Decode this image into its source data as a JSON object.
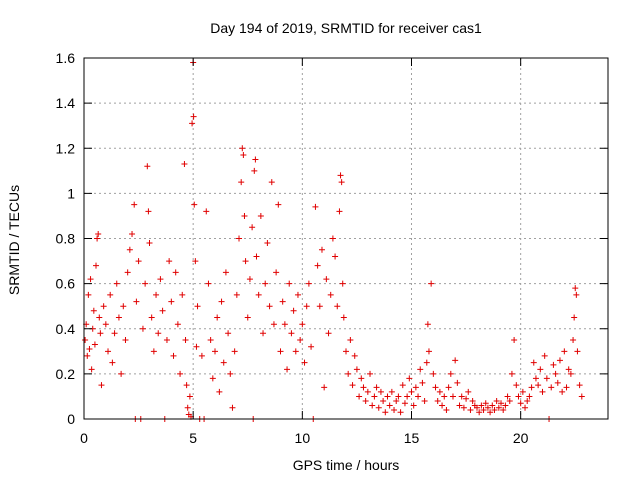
{
  "chart_data": {
    "type": "scatter",
    "title": "Day 194 of 2019, SRMTID for receiver cas1",
    "xlabel": "GPS time / hours",
    "ylabel": "SRMTID / TECUs",
    "xlim": [
      0,
      24
    ],
    "ylim": [
      0,
      1.6
    ],
    "xticks": [
      0,
      5,
      10,
      15,
      20
    ],
    "xtick_labels": [
      "0",
      "5",
      "10",
      "15",
      "20"
    ],
    "yticks": [
      0,
      0.2,
      0.4,
      0.6,
      0.8,
      1.0,
      1.2,
      1.4,
      1.6
    ],
    "ytick_labels": [
      "0",
      "0.2",
      "0.4",
      "0.6",
      "0.8",
      "1",
      "1.2",
      "1.4",
      "1.6"
    ],
    "grid": true,
    "marker": "plus",
    "color": "#e00000",
    "series": [
      {
        "name": "SRMTID",
        "points": [
          [
            0.05,
            0.35
          ],
          [
            0.1,
            0.42
          ],
          [
            0.15,
            0.28
          ],
          [
            0.2,
            0.55
          ],
          [
            0.25,
            0.31
          ],
          [
            0.3,
            0.62
          ],
          [
            0.35,
            0.22
          ],
          [
            0.4,
            0.4
          ],
          [
            0.45,
            0.48
          ],
          [
            0.5,
            0.33
          ],
          [
            0.55,
            0.68
          ],
          [
            0.6,
            0.8
          ],
          [
            0.65,
            0.82
          ],
          [
            0.7,
            0.45
          ],
          [
            0.75,
            0.38
          ],
          [
            0.8,
            0.15
          ],
          [
            0.9,
            0.5
          ],
          [
            1.0,
            0.42
          ],
          [
            1.1,
            0.3
          ],
          [
            1.2,
            0.55
          ],
          [
            1.3,
            0.25
          ],
          [
            1.4,
            0.38
          ],
          [
            1.5,
            0.6
          ],
          [
            1.6,
            0.45
          ],
          [
            1.7,
            0.2
          ],
          [
            1.8,
            0.5
          ],
          [
            1.9,
            0.35
          ],
          [
            2.0,
            0.65
          ],
          [
            2.1,
            0.75
          ],
          [
            2.2,
            0.82
          ],
          [
            2.3,
            0.95
          ],
          [
            2.35,
            0.0
          ],
          [
            2.4,
            0.52
          ],
          [
            2.5,
            0.7
          ],
          [
            2.6,
            0.0
          ],
          [
            2.7,
            0.4
          ],
          [
            2.8,
            0.6
          ],
          [
            2.9,
            1.12
          ],
          [
            2.95,
            0.92
          ],
          [
            3.0,
            0.78
          ],
          [
            3.1,
            0.45
          ],
          [
            3.2,
            0.3
          ],
          [
            3.3,
            0.55
          ],
          [
            3.4,
            0.38
          ],
          [
            3.5,
            0.62
          ],
          [
            3.6,
            0.48
          ],
          [
            3.7,
            0.0
          ],
          [
            3.8,
            0.35
          ],
          [
            3.9,
            0.7
          ],
          [
            4.0,
            0.52
          ],
          [
            4.1,
            0.28
          ],
          [
            4.2,
            0.65
          ],
          [
            4.3,
            0.42
          ],
          [
            4.4,
            0.2
          ],
          [
            4.5,
            0.55
          ],
          [
            4.6,
            1.13
          ],
          [
            4.65,
            0.35
          ],
          [
            4.7,
            0.15
          ],
          [
            4.75,
            0.05
          ],
          [
            4.8,
            0.02
          ],
          [
            4.85,
            0.1
          ],
          [
            4.9,
            0.01
          ],
          [
            4.95,
            1.31
          ],
          [
            5.0,
            1.58
          ],
          [
            5.02,
            1.34
          ],
          [
            5.05,
            0.95
          ],
          [
            5.1,
            0.7
          ],
          [
            5.15,
            0.32
          ],
          [
            5.2,
            0.5
          ],
          [
            5.3,
            0.0
          ],
          [
            5.4,
            0.28
          ],
          [
            5.5,
            0.0
          ],
          [
            5.6,
            0.92
          ],
          [
            5.7,
            0.6
          ],
          [
            5.8,
            0.35
          ],
          [
            5.9,
            0.18
          ],
          [
            6.0,
            0.3
          ],
          [
            6.1,
            0.45
          ],
          [
            6.2,
            0.12
          ],
          [
            6.3,
            0.52
          ],
          [
            6.4,
            0.25
          ],
          [
            6.5,
            0.65
          ],
          [
            6.6,
            0.38
          ],
          [
            6.7,
            0.2
          ],
          [
            6.8,
            0.05
          ],
          [
            6.9,
            0.3
          ],
          [
            7.0,
            0.55
          ],
          [
            7.1,
            0.8
          ],
          [
            7.2,
            1.05
          ],
          [
            7.25,
            1.2
          ],
          [
            7.3,
            1.17
          ],
          [
            7.35,
            0.9
          ],
          [
            7.4,
            0.7
          ],
          [
            7.5,
            0.45
          ],
          [
            7.6,
            0.62
          ],
          [
            7.7,
            0.85
          ],
          [
            7.75,
            0.0
          ],
          [
            7.8,
            1.1
          ],
          [
            7.85,
            1.15
          ],
          [
            7.9,
            0.72
          ],
          [
            8.0,
            0.55
          ],
          [
            8.1,
            0.9
          ],
          [
            8.2,
            0.38
          ],
          [
            8.3,
            0.6
          ],
          [
            8.4,
            0.78
          ],
          [
            8.5,
            0.5
          ],
          [
            8.6,
            1.05
          ],
          [
            8.7,
            0.42
          ],
          [
            8.8,
            0.65
          ],
          [
            8.9,
            0.95
          ],
          [
            9.0,
            0.3
          ],
          [
            9.1,
            0.52
          ],
          [
            9.2,
            0.42
          ],
          [
            9.3,
            0.22
          ],
          [
            9.4,
            0.6
          ],
          [
            9.5,
            0.38
          ],
          [
            9.6,
            0.48
          ],
          [
            9.7,
            0.3
          ],
          [
            9.8,
            0.55
          ],
          [
            9.9,
            0.35
          ],
          [
            10.0,
            0.42
          ],
          [
            10.1,
            0.25
          ],
          [
            10.2,
            0.5
          ],
          [
            10.3,
            0.6
          ],
          [
            10.4,
            0.32
          ],
          [
            10.5,
            0.0
          ],
          [
            10.6,
            0.94
          ],
          [
            10.7,
            0.68
          ],
          [
            10.8,
            0.5
          ],
          [
            10.9,
            0.75
          ],
          [
            11.0,
            0.14
          ],
          [
            11.1,
            0.62
          ],
          [
            11.2,
            0.38
          ],
          [
            11.3,
            0.55
          ],
          [
            11.4,
            0.8
          ],
          [
            11.5,
            0.72
          ],
          [
            11.6,
            0.5
          ],
          [
            11.7,
            0.92
          ],
          [
            11.75,
            1.08
          ],
          [
            11.8,
            1.05
          ],
          [
            11.85,
            0.6
          ],
          [
            11.9,
            0.45
          ],
          [
            12.0,
            0.3
          ],
          [
            12.1,
            0.2
          ],
          [
            12.2,
            0.35
          ],
          [
            12.3,
            0.15
          ],
          [
            12.4,
            0.28
          ],
          [
            12.5,
            0.22
          ],
          [
            12.6,
            0.1
          ],
          [
            12.7,
            0.18
          ],
          [
            12.8,
            0.14
          ],
          [
            12.9,
            0.08
          ],
          [
            13.0,
            0.12
          ],
          [
            13.1,
            0.2
          ],
          [
            13.2,
            0.06
          ],
          [
            13.3,
            0.1
          ],
          [
            13.4,
            0.14
          ],
          [
            13.5,
            0.05
          ],
          [
            13.6,
            0.12
          ],
          [
            13.7,
            0.08
          ],
          [
            13.8,
            0.03
          ],
          [
            13.9,
            0.1
          ],
          [
            14.0,
            0.06
          ],
          [
            14.1,
            0.12
          ],
          [
            14.2,
            0.04
          ],
          [
            14.3,
            0.08
          ],
          [
            14.4,
            0.1
          ],
          [
            14.5,
            0.03
          ],
          [
            14.6,
            0.15
          ],
          [
            14.7,
            0.07
          ],
          [
            14.8,
            0.1
          ],
          [
            14.9,
            0.18
          ],
          [
            15.0,
            0.12
          ],
          [
            15.1,
            0.06
          ],
          [
            15.2,
            0.14
          ],
          [
            15.3,
            0.1
          ],
          [
            15.4,
            0.22
          ],
          [
            15.5,
            0.16
          ],
          [
            15.6,
            0.08
          ],
          [
            15.7,
            0.25
          ],
          [
            15.75,
            0.42
          ],
          [
            15.8,
            0.3
          ],
          [
            15.9,
            0.6
          ],
          [
            16.0,
            0.2
          ],
          [
            16.1,
            0.14
          ],
          [
            16.2,
            0.08
          ],
          [
            16.3,
            0.12
          ],
          [
            16.4,
            0.06
          ],
          [
            16.5,
            0.1
          ],
          [
            16.6,
            0.04
          ],
          [
            16.7,
            0.14
          ],
          [
            16.8,
            0.2
          ],
          [
            16.9,
            0.1
          ],
          [
            17.0,
            0.26
          ],
          [
            17.1,
            0.16
          ],
          [
            17.2,
            0.06
          ],
          [
            17.3,
            0.1
          ],
          [
            17.4,
            0.05
          ],
          [
            17.5,
            0.09
          ],
          [
            17.6,
            0.12
          ],
          [
            17.7,
            0.04
          ],
          [
            17.8,
            0.08
          ],
          [
            17.9,
            0.06
          ],
          [
            18.0,
            0.05
          ],
          [
            18.1,
            0.03
          ],
          [
            18.2,
            0.06
          ],
          [
            18.3,
            0.04
          ],
          [
            18.4,
            0.07
          ],
          [
            18.5,
            0.05
          ],
          [
            18.6,
            0.03
          ],
          [
            18.7,
            0.06
          ],
          [
            18.8,
            0.04
          ],
          [
            18.9,
            0.08
          ],
          [
            19.0,
            0.05
          ],
          [
            19.1,
            0.07
          ],
          [
            19.2,
            0.04
          ],
          [
            19.3,
            0.06
          ],
          [
            19.4,
            0.1
          ],
          [
            19.5,
            0.08
          ],
          [
            19.6,
            0.2
          ],
          [
            19.7,
            0.35
          ],
          [
            19.8,
            0.15
          ],
          [
            19.9,
            0.1
          ],
          [
            20.0,
            0.07
          ],
          [
            20.1,
            0.12
          ],
          [
            20.2,
            0.05
          ],
          [
            20.3,
            0.08
          ],
          [
            20.4,
            0.1
          ],
          [
            20.5,
            0.14
          ],
          [
            20.6,
            0.25
          ],
          [
            20.7,
            0.18
          ],
          [
            20.8,
            0.15
          ],
          [
            20.9,
            0.22
          ],
          [
            21.0,
            0.12
          ],
          [
            21.1,
            0.28
          ],
          [
            21.2,
            0.18
          ],
          [
            21.3,
            0.0
          ],
          [
            21.4,
            0.14
          ],
          [
            21.5,
            0.24
          ],
          [
            21.6,
            0.2
          ],
          [
            21.7,
            0.16
          ],
          [
            21.8,
            0.26
          ],
          [
            21.9,
            0.12
          ],
          [
            22.0,
            0.3
          ],
          [
            22.1,
            0.14
          ],
          [
            22.2,
            0.22
          ],
          [
            22.3,
            0.2
          ],
          [
            22.4,
            0.35
          ],
          [
            22.45,
            0.45
          ],
          [
            22.5,
            0.58
          ],
          [
            22.55,
            0.55
          ],
          [
            22.6,
            0.3
          ],
          [
            22.7,
            0.15
          ],
          [
            22.8,
            0.1
          ]
        ]
      }
    ]
  }
}
